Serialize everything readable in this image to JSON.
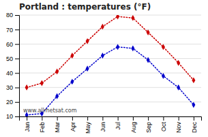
{
  "chart_data": {
    "type": "line",
    "title": "Portland : temperatures (°F)",
    "categories": [
      "Jan",
      "Feb",
      "Mar",
      "Apr",
      "May",
      "Jun",
      "Jul",
      "Aug",
      "Sep",
      "Oct",
      "Nov",
      "Dec"
    ],
    "series": [
      {
        "color": "#cc0000",
        "marker": "diamond",
        "line_style": "dotted",
        "values": [
          30,
          33,
          41,
          52,
          62,
          72,
          79,
          78,
          68,
          58,
          47,
          35
        ]
      },
      {
        "color": "#0000cc",
        "marker": "diamond",
        "line_style": "dotted",
        "values": [
          11,
          12,
          24,
          34,
          43,
          52,
          58,
          57,
          49,
          38,
          30,
          18
        ]
      }
    ],
    "ylim": [
      10,
      80
    ],
    "yticks": [
      10,
      20,
      30,
      40,
      50,
      60,
      70,
      80
    ],
    "grid": true,
    "annotation": "www.allmetsat.com"
  }
}
